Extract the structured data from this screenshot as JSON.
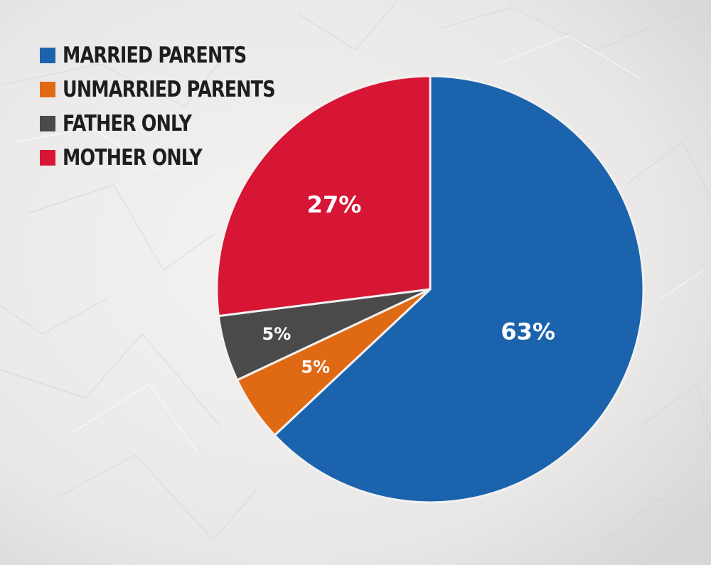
{
  "chart_data": {
    "type": "pie",
    "categories": [
      "MARRIED PARENTS",
      "UNMARRIED PARENTS",
      "FATHER ONLY",
      "MOTHER ONLY"
    ],
    "values": [
      63,
      5,
      5,
      27
    ],
    "data_labels": [
      "63%",
      "5%",
      "5%",
      "27%"
    ],
    "colors": [
      "#1b64ad",
      "#e06a14",
      "#4a4a4a",
      "#d71535"
    ],
    "legend_position": "top-left",
    "start_angle": "12 o'clock",
    "direction": "clockwise"
  }
}
